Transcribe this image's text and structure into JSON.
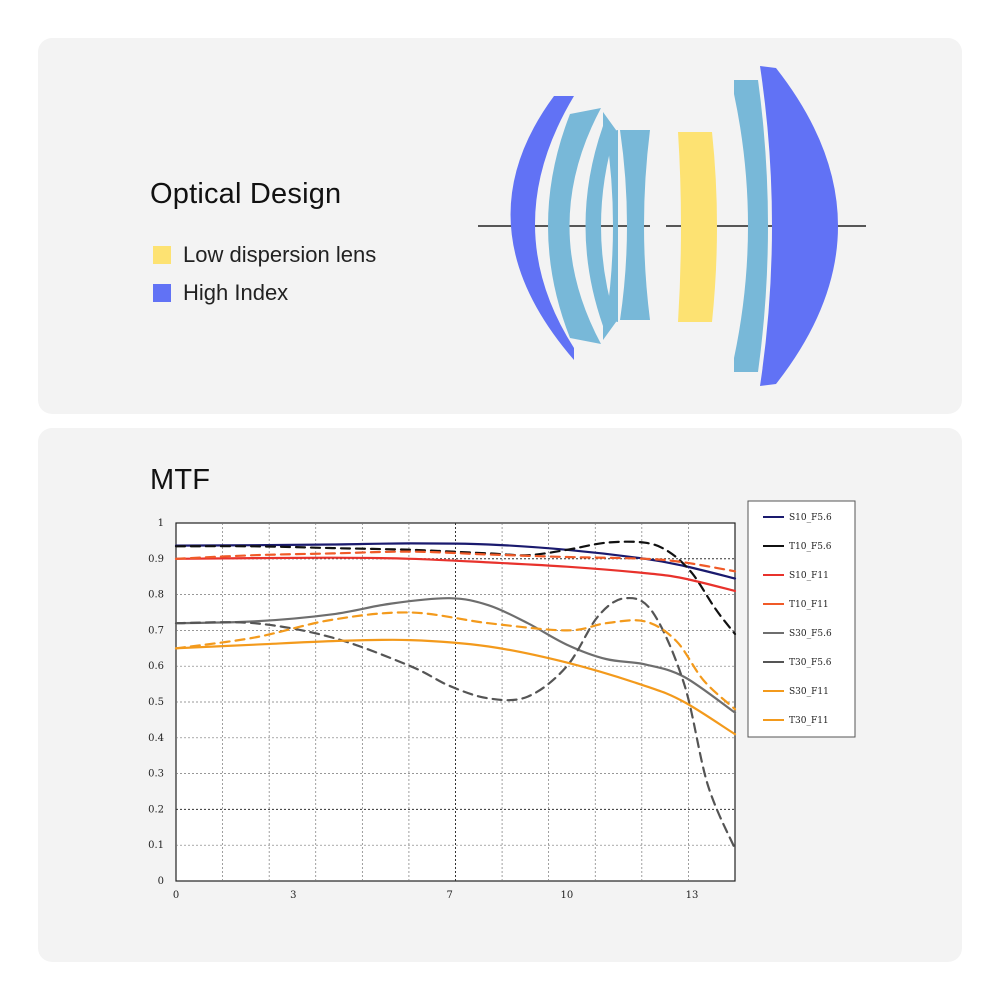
{
  "optical": {
    "title": "Optical Design",
    "legend": [
      {
        "label": "Low dispersion lens",
        "color": "#fde272"
      },
      {
        "label": "High Index",
        "color": "#6172f5"
      }
    ],
    "lens_colors": {
      "high_index": "#6172f5",
      "standard": "#78b8d8",
      "low_dispersion": "#fde272"
    }
  },
  "mtf": {
    "title": "MTF"
  },
  "chart_data": {
    "type": "line",
    "title": "MTF",
    "xlabel": "",
    "ylabel": "",
    "xlim": [
      0,
      14.3
    ],
    "ylim": [
      0,
      1
    ],
    "x_ticks": [
      "0",
      "3",
      "7",
      "10",
      "13"
    ],
    "x_tick_values": [
      0,
      3,
      7,
      10,
      13.2
    ],
    "y_ticks": [
      "0",
      "0.1",
      "0.2",
      "0.3",
      "0.4",
      "0.5",
      "0.6",
      "0.7",
      "0.8",
      "0.9",
      "1"
    ],
    "grid": true,
    "legend_position": "right",
    "series": [
      {
        "name": "S10_F5.6",
        "color": "#1a1a6e",
        "dash": false,
        "x": [
          0,
          2,
          4,
          6,
          8,
          10,
          12,
          13,
          14.3
        ],
        "y": [
          0.937,
          0.938,
          0.94,
          0.943,
          0.94,
          0.925,
          0.9,
          0.88,
          0.845
        ]
      },
      {
        "name": "T10_F5.6",
        "color": "#111111",
        "dash": true,
        "x": [
          0,
          2,
          4,
          6,
          8,
          9,
          10,
          11,
          12,
          12.6,
          13.2,
          13.8,
          14.3
        ],
        "y": [
          0.935,
          0.935,
          0.93,
          0.925,
          0.915,
          0.91,
          0.925,
          0.945,
          0.945,
          0.92,
          0.86,
          0.76,
          0.69
        ]
      },
      {
        "name": "S10_F11",
        "color": "#e8322c",
        "dash": false,
        "x": [
          0,
          2,
          4,
          6,
          8,
          10,
          12,
          13,
          14.3
        ],
        "y": [
          0.9,
          0.902,
          0.903,
          0.9,
          0.89,
          0.878,
          0.86,
          0.845,
          0.81
        ]
      },
      {
        "name": "T10_F11",
        "color": "#f05a28",
        "dash": true,
        "x": [
          0,
          2,
          4,
          6,
          8,
          10,
          12,
          13,
          14.3
        ],
        "y": [
          0.9,
          0.91,
          0.915,
          0.92,
          0.912,
          0.905,
          0.9,
          0.89,
          0.865
        ]
      },
      {
        "name": "S30_F5.6",
        "color": "#6e6e6e",
        "dash": false,
        "x": [
          0,
          2,
          4,
          5.5,
          7,
          8,
          9,
          10,
          11,
          12,
          13,
          14.3
        ],
        "y": [
          0.72,
          0.725,
          0.745,
          0.775,
          0.79,
          0.77,
          0.72,
          0.66,
          0.62,
          0.605,
          0.57,
          0.47
        ]
      },
      {
        "name": "T30_F5.6",
        "color": "#555555",
        "dash": true,
        "x": [
          0,
          2,
          4,
          6,
          7,
          8,
          9,
          10,
          10.8,
          11.5,
          12.2,
          13,
          13.6,
          14.3
        ],
        "y": [
          0.72,
          0.72,
          0.68,
          0.6,
          0.545,
          0.51,
          0.515,
          0.6,
          0.74,
          0.79,
          0.75,
          0.55,
          0.27,
          0.09
        ]
      },
      {
        "name": "S30_F11",
        "color": "#f39a1c",
        "dash": false,
        "x": [
          0,
          2,
          4,
          6,
          8,
          10,
          12,
          13,
          14.3
        ],
        "y": [
          0.65,
          0.66,
          0.67,
          0.673,
          0.655,
          0.61,
          0.545,
          0.5,
          0.41
        ]
      },
      {
        "name": "T30_F11",
        "color": "#f39a1c",
        "dash": true,
        "x": [
          0,
          2,
          4,
          6,
          8,
          10,
          11,
          12,
          12.8,
          13.5,
          14.3
        ],
        "y": [
          0.65,
          0.68,
          0.73,
          0.75,
          0.72,
          0.7,
          0.72,
          0.725,
          0.67,
          0.56,
          0.48
        ]
      }
    ]
  }
}
